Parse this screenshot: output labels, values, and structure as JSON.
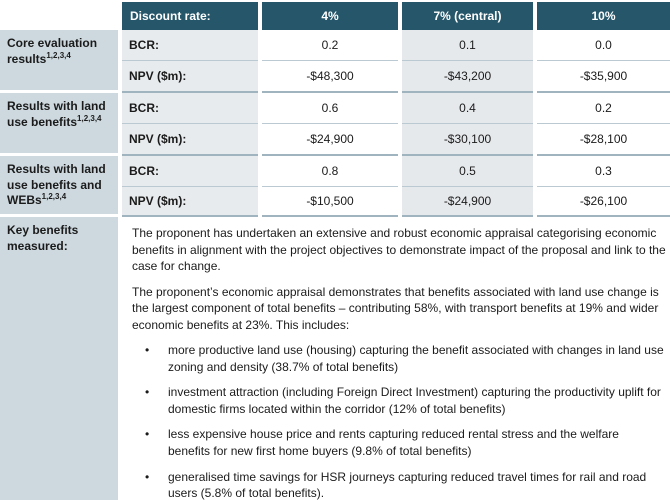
{
  "table": {
    "header": {
      "label": "Discount rate:",
      "columns": [
        "4%",
        "7% (central)",
        "10%"
      ]
    },
    "groups": [
      {
        "label": "Core evaluation results",
        "sup": "1,2,3,4",
        "rows": [
          {
            "metric": "BCR:",
            "values": [
              "0.2",
              "0.1",
              "0.0"
            ]
          },
          {
            "metric": "NPV ($m):",
            "values": [
              "-$48,300",
              "-$43,200",
              "-$35,900"
            ]
          }
        ]
      },
      {
        "label": "Results with land use benefits",
        "sup": "1,2,3,4",
        "rows": [
          {
            "metric": "BCR:",
            "values": [
              "0.6",
              "0.4",
              "0.2"
            ]
          },
          {
            "metric": "NPV ($m):",
            "values": [
              "-$24,900",
              "-$30,100",
              "-$28,100"
            ]
          }
        ]
      },
      {
        "label": "Results with land use benefits and WEBs",
        "sup": "1,2,3,4",
        "rows": [
          {
            "metric": "BCR:",
            "values": [
              "0.8",
              "0.5",
              "0.3"
            ]
          },
          {
            "metric": "NPV ($m):",
            "values": [
              "-$10,500",
              "-$24,900",
              "-$26,100"
            ]
          }
        ]
      }
    ],
    "key_benefits": {
      "label": "Key benefits measured:",
      "paragraphs": [
        "The proponent has undertaken an extensive and robust economic appraisal categorising economic benefits in alignment with the project objectives to demonstrate impact of the proposal and link to the case for change.",
        "The proponent’s economic appraisal demonstrates that benefits associated with land use change is the largest component of total benefits – contributing 58%, with transport benefits at 19% and wider economic benefits at 23%. This includes:"
      ],
      "bullet_icon": "•",
      "bullets": [
        "more productive land use (housing) capturing the benefit associated with changes in land use zoning and density (38.7% of total benefits)",
        "investment attraction (including Foreign Direct Investment) capturing the productivity uplift for domestic firms located within the corridor (12% of total benefits)",
        "less expensive house price and rents capturing reduced rental stress and the welfare benefits for new first home buyers (9.8% of total benefits)",
        "generalised time savings for HSR journeys capturing reduced travel times for rail and road users (5.8% of total benefits)."
      ]
    },
    "colors": {
      "header_bg": "#25566a",
      "header_text": "#ffffff",
      "left_column_bg": "#cdd9df",
      "shaded_cell_bg": "#e8ebed",
      "row_line": "#bac9d2",
      "group_line": "#9fb4be",
      "bottom_line": "#9aa8af"
    }
  }
}
